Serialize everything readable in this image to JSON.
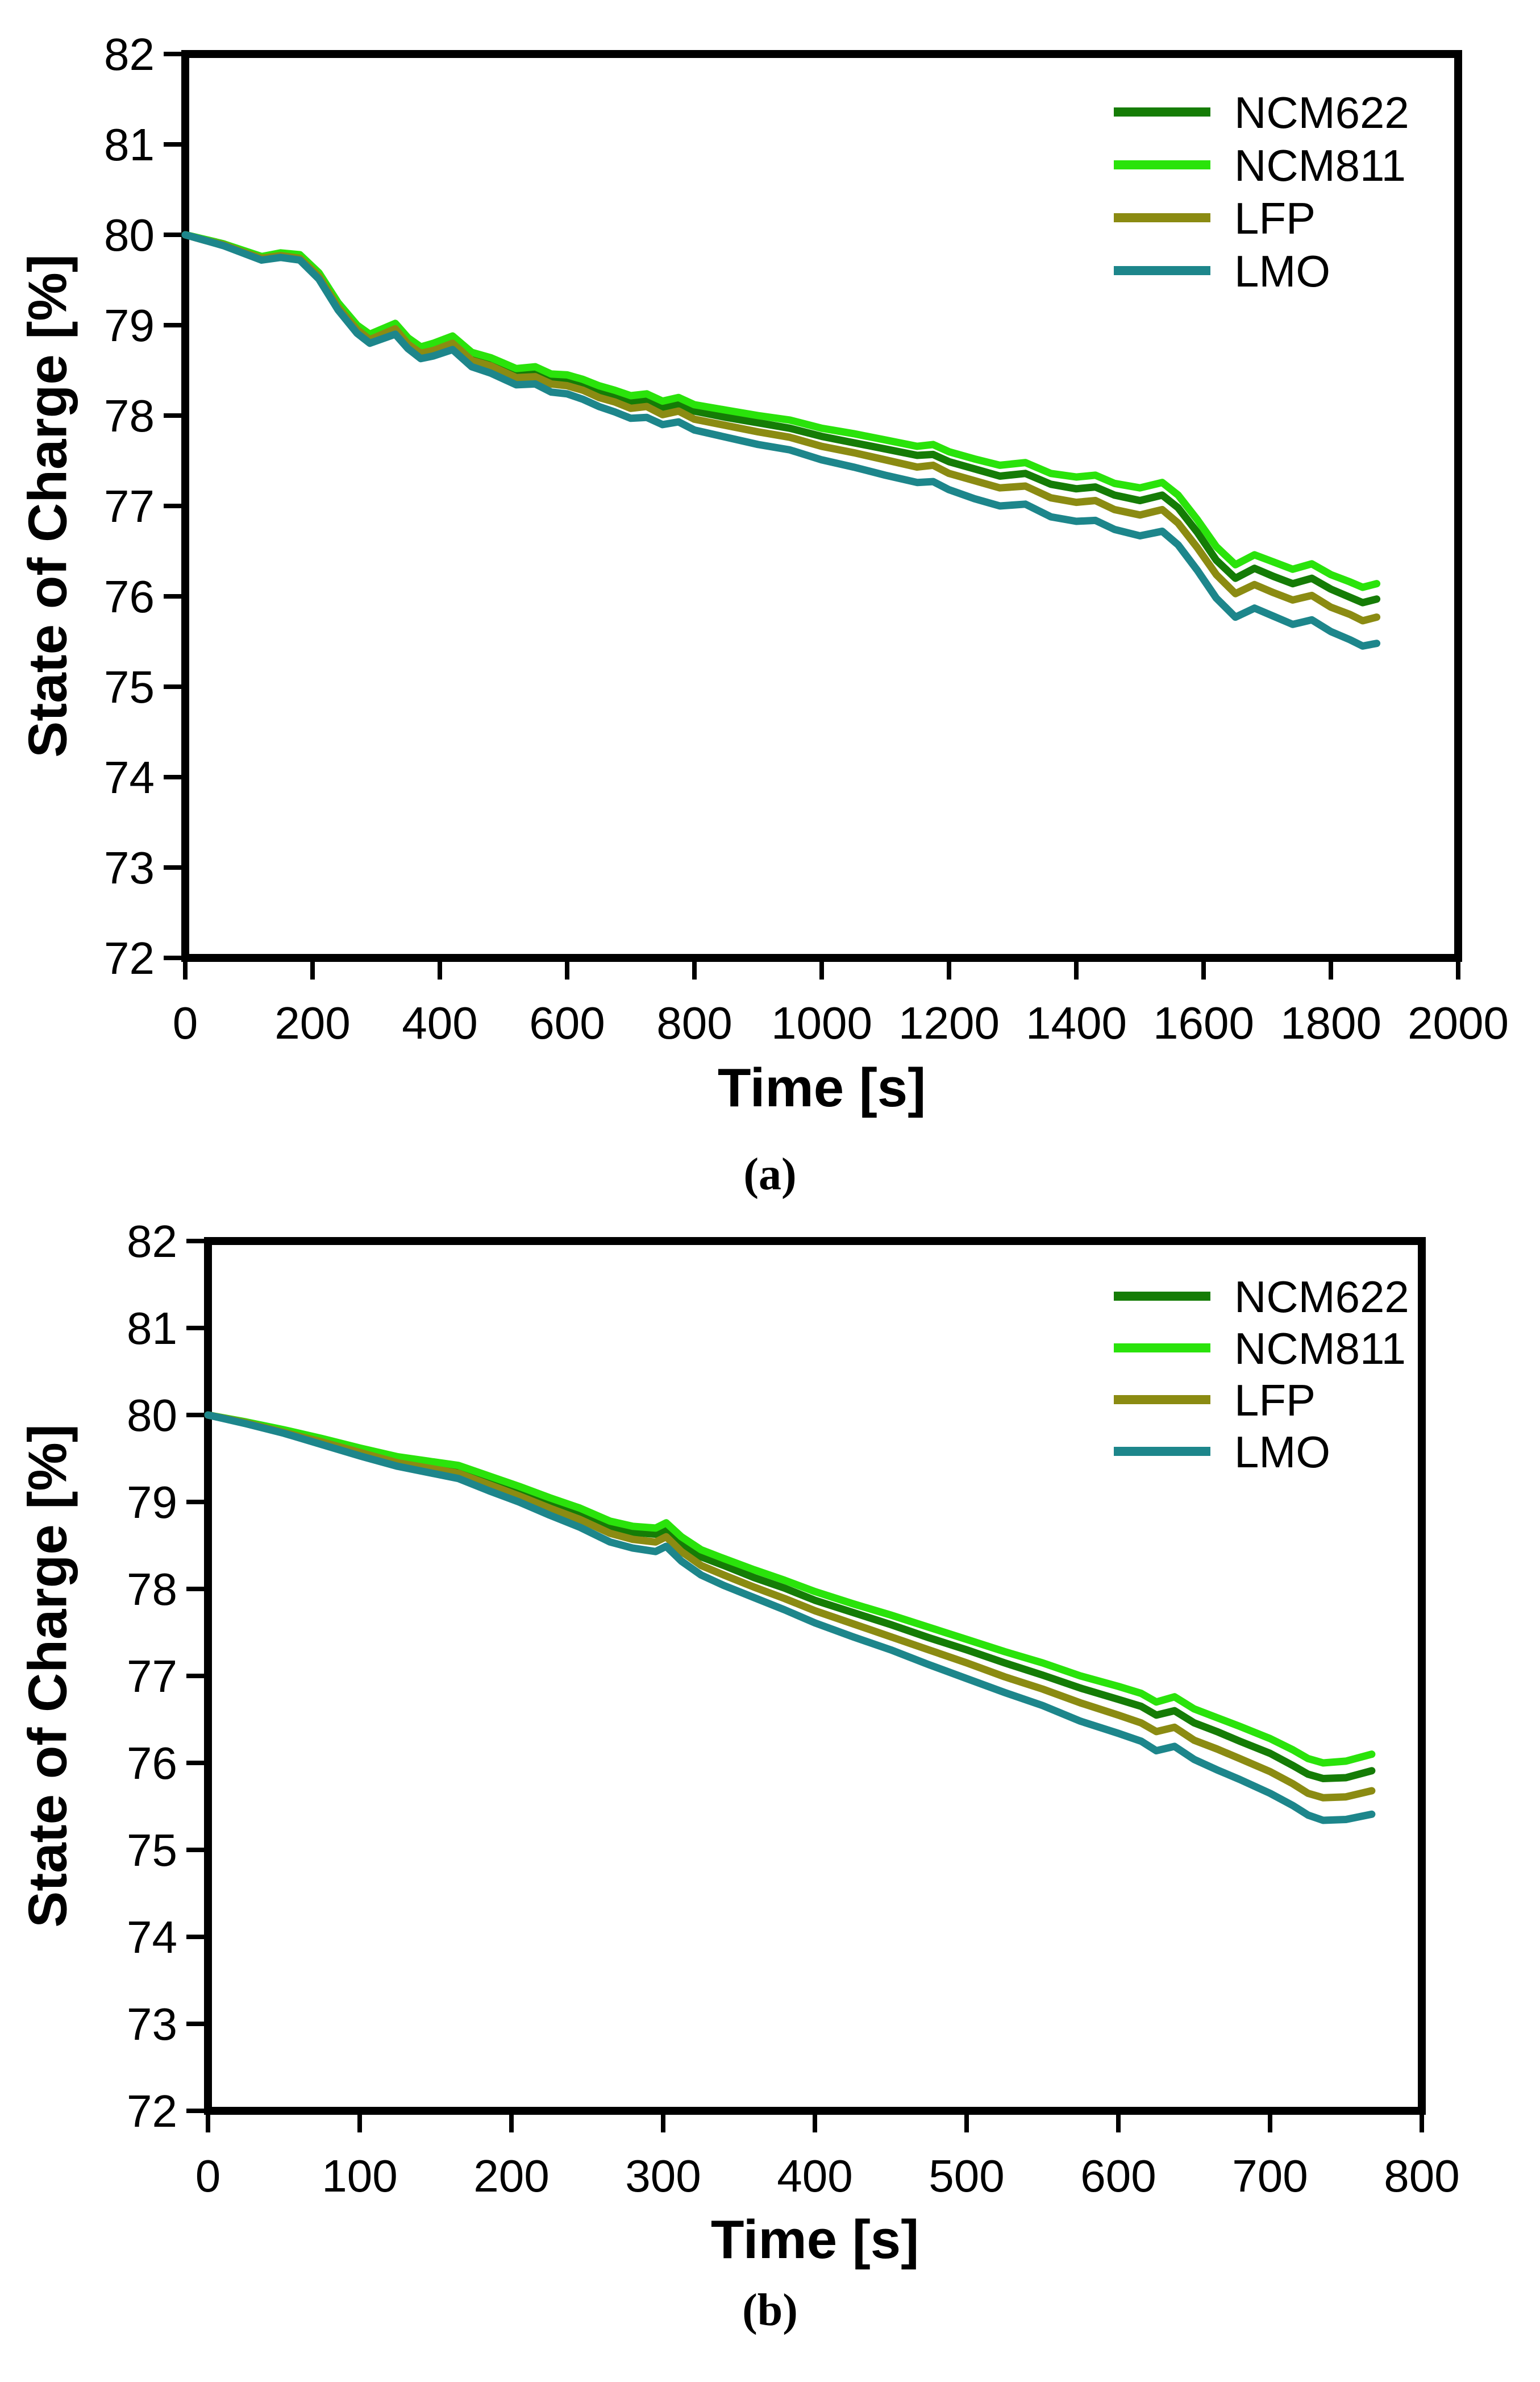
{
  "page": {
    "background": "#ffffff",
    "axis_color": "#000000",
    "figure_type": "two-panel line chart of battery state of charge vs time"
  },
  "chart_data": [
    {
      "id": "a",
      "type": "line",
      "caption": "(a)",
      "title": "",
      "xlabel": "Time [s]",
      "ylabel": "State of Charge [%]",
      "xlim": [
        0,
        2000
      ],
      "ylim": [
        72,
        82
      ],
      "x_ticks": [
        0,
        200,
        400,
        600,
        800,
        1000,
        1200,
        1400,
        1600,
        1800,
        2000
      ],
      "y_ticks": [
        82,
        81,
        80,
        79,
        78,
        77,
        76,
        75,
        74,
        73,
        72
      ],
      "grid": false,
      "legend_position": "top-right",
      "x": [
        0,
        30,
        60,
        90,
        120,
        150,
        180,
        210,
        240,
        270,
        290,
        330,
        350,
        370,
        390,
        420,
        450,
        480,
        520,
        550,
        575,
        600,
        625,
        650,
        675,
        700,
        725,
        750,
        775,
        800,
        850,
        900,
        950,
        1000,
        1050,
        1100,
        1150,
        1175,
        1200,
        1240,
        1280,
        1320,
        1360,
        1400,
        1430,
        1460,
        1500,
        1535,
        1560,
        1590,
        1620,
        1650,
        1680,
        1710,
        1740,
        1770,
        1800,
        1830,
        1850,
        1872
      ],
      "series": [
        {
          "name": "NCM622",
          "color": "#157c06",
          "values": [
            80.0,
            79.95,
            79.9,
            79.82,
            79.75,
            79.79,
            79.76,
            79.56,
            79.23,
            78.98,
            78.87,
            78.99,
            78.83,
            78.73,
            78.77,
            78.84,
            78.66,
            78.6,
            78.47,
            78.49,
            78.41,
            78.4,
            78.34,
            78.27,
            78.22,
            78.16,
            78.17,
            78.09,
            78.13,
            78.05,
            77.98,
            77.92,
            77.86,
            77.77,
            77.7,
            77.63,
            77.56,
            77.57,
            77.49,
            77.41,
            77.33,
            77.36,
            77.24,
            77.19,
            77.21,
            77.12,
            77.06,
            77.12,
            76.98,
            76.71,
            76.4,
            76.2,
            76.31,
            76.22,
            76.14,
            76.2,
            76.08,
            75.99,
            75.93,
            75.97
          ]
        },
        {
          "name": "NCM811",
          "color": "#2ae30b",
          "values": [
            80.0,
            79.95,
            79.9,
            79.83,
            79.76,
            79.8,
            79.78,
            79.58,
            79.25,
            79.0,
            78.9,
            79.02,
            78.86,
            78.76,
            78.8,
            78.88,
            78.7,
            78.64,
            78.52,
            78.54,
            78.46,
            78.45,
            78.4,
            78.33,
            78.28,
            78.22,
            78.24,
            78.16,
            78.2,
            78.12,
            78.06,
            78.0,
            77.95,
            77.86,
            77.8,
            77.73,
            77.66,
            77.68,
            77.6,
            77.52,
            77.45,
            77.48,
            77.36,
            77.32,
            77.34,
            77.25,
            77.2,
            77.26,
            77.12,
            76.85,
            76.55,
            76.35,
            76.46,
            76.38,
            76.3,
            76.36,
            76.24,
            76.16,
            76.1,
            76.14
          ]
        },
        {
          "name": "LFP",
          "color": "#8b8b12",
          "values": [
            80.0,
            79.94,
            79.89,
            79.81,
            79.74,
            79.77,
            79.74,
            79.54,
            79.2,
            78.95,
            78.84,
            78.96,
            78.79,
            78.69,
            78.72,
            78.8,
            78.61,
            78.55,
            78.42,
            78.43,
            78.35,
            78.33,
            78.28,
            78.2,
            78.15,
            78.08,
            78.1,
            78.01,
            78.05,
            77.96,
            77.89,
            77.82,
            77.76,
            77.66,
            77.59,
            77.51,
            77.43,
            77.45,
            77.36,
            77.28,
            77.2,
            77.22,
            77.09,
            77.04,
            77.06,
            76.96,
            76.9,
            76.96,
            76.81,
            76.54,
            76.24,
            76.03,
            76.13,
            76.04,
            75.96,
            76.01,
            75.88,
            75.8,
            75.73,
            75.77
          ]
        },
        {
          "name": "LMO",
          "color": "#1d868b",
          "values": [
            80.0,
            79.94,
            79.88,
            79.8,
            79.72,
            79.75,
            79.72,
            79.51,
            79.17,
            78.91,
            78.8,
            78.9,
            78.74,
            78.63,
            78.66,
            78.73,
            78.54,
            78.47,
            78.34,
            78.35,
            78.26,
            78.24,
            78.18,
            78.1,
            78.04,
            77.97,
            77.98,
            77.9,
            77.93,
            77.84,
            77.76,
            77.68,
            77.62,
            77.51,
            77.43,
            77.34,
            77.26,
            77.27,
            77.18,
            77.08,
            77.0,
            77.02,
            76.88,
            76.83,
            76.84,
            76.74,
            76.67,
            76.72,
            76.57,
            76.29,
            75.98,
            75.77,
            75.87,
            75.78,
            75.69,
            75.74,
            75.61,
            75.52,
            75.45,
            75.48
          ]
        }
      ]
    },
    {
      "id": "b",
      "type": "line",
      "caption": "(b)",
      "title": "",
      "xlabel": "Time [s]",
      "ylabel": "State of Charge [%]",
      "xlim": [
        0,
        800
      ],
      "ylim": [
        72,
        82
      ],
      "x_ticks": [
        0,
        100,
        200,
        300,
        400,
        500,
        600,
        700,
        800
      ],
      "y_ticks": [
        82,
        81,
        80,
        79,
        78,
        77,
        76,
        75,
        74,
        73,
        72
      ],
      "grid": false,
      "legend_position": "top-right",
      "x": [
        0,
        25,
        50,
        75,
        100,
        125,
        145,
        165,
        185,
        205,
        225,
        245,
        265,
        280,
        295,
        302,
        312,
        325,
        340,
        360,
        380,
        400,
        425,
        450,
        475,
        500,
        525,
        550,
        575,
        600,
        615,
        625,
        637,
        650,
        665,
        680,
        700,
        715,
        725,
        735,
        750,
        767
      ],
      "series": [
        {
          "name": "NCM622",
          "color": "#157c06",
          "values": [
            80.0,
            79.91,
            79.82,
            79.71,
            79.6,
            79.49,
            79.43,
            79.38,
            79.25,
            79.13,
            78.99,
            78.87,
            78.71,
            78.65,
            78.63,
            78.69,
            78.52,
            78.37,
            78.27,
            78.13,
            78.01,
            77.87,
            77.73,
            77.59,
            77.44,
            77.3,
            77.15,
            77.01,
            76.86,
            76.73,
            76.65,
            76.55,
            76.6,
            76.46,
            76.36,
            76.25,
            76.11,
            75.97,
            75.87,
            75.82,
            75.83,
            75.91
          ]
        },
        {
          "name": "NCM811",
          "color": "#2ae30b",
          "values": [
            80.0,
            79.92,
            79.83,
            79.73,
            79.62,
            79.52,
            79.47,
            79.42,
            79.3,
            79.18,
            79.05,
            78.93,
            78.78,
            78.72,
            78.7,
            78.76,
            78.6,
            78.45,
            78.35,
            78.22,
            78.1,
            77.97,
            77.83,
            77.7,
            77.56,
            77.42,
            77.28,
            77.15,
            77.0,
            76.88,
            76.8,
            76.7,
            76.76,
            76.62,
            76.52,
            76.42,
            76.28,
            76.15,
            76.05,
            76.0,
            76.02,
            76.1
          ]
        },
        {
          "name": "LFP",
          "color": "#8b8b12",
          "values": [
            80.0,
            79.91,
            79.8,
            79.69,
            79.57,
            79.45,
            79.39,
            79.33,
            79.2,
            79.07,
            78.93,
            78.8,
            78.64,
            78.57,
            78.54,
            78.6,
            78.43,
            78.27,
            78.16,
            78.02,
            77.89,
            77.75,
            77.6,
            77.45,
            77.3,
            77.15,
            76.99,
            76.85,
            76.69,
            76.55,
            76.46,
            76.36,
            76.41,
            76.26,
            76.16,
            76.05,
            75.9,
            75.76,
            75.65,
            75.6,
            75.61,
            75.68
          ]
        },
        {
          "name": "LMO",
          "color": "#1d868b",
          "values": [
            80.0,
            79.9,
            79.79,
            79.66,
            79.53,
            79.41,
            79.34,
            79.27,
            79.13,
            79.0,
            78.85,
            78.71,
            78.54,
            78.47,
            78.43,
            78.49,
            78.32,
            78.16,
            78.04,
            77.9,
            77.76,
            77.61,
            77.45,
            77.3,
            77.13,
            76.97,
            76.81,
            76.66,
            76.48,
            76.34,
            76.25,
            76.14,
            76.19,
            76.04,
            75.92,
            75.81,
            75.65,
            75.51,
            75.4,
            75.34,
            75.35,
            75.41
          ]
        }
      ]
    }
  ]
}
